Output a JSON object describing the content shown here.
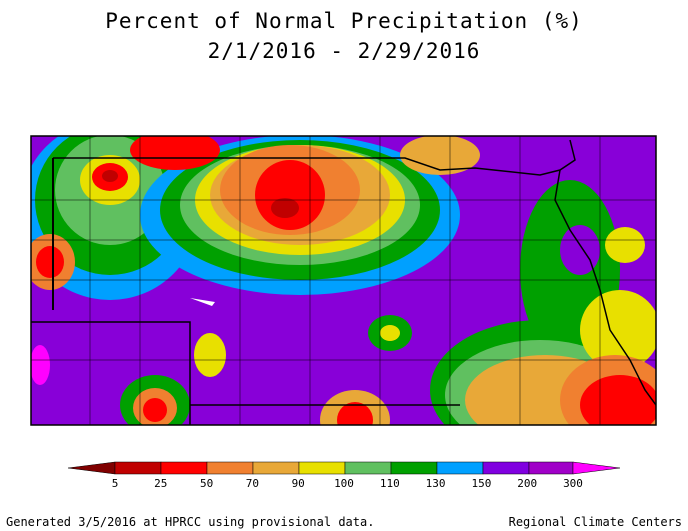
{
  "title": [
    "Percent of Normal Precipitation (%)",
    "2/1/2016 - 2/29/2016"
  ],
  "legend": {
    "labels": [
      5,
      25,
      50,
      70,
      90,
      100,
      110,
      130,
      150,
      200,
      300
    ]
  },
  "footer": {
    "left": "Generated 3/5/2016 at HPRCC using provisional data.",
    "right": "Regional Climate Centers"
  }
}
